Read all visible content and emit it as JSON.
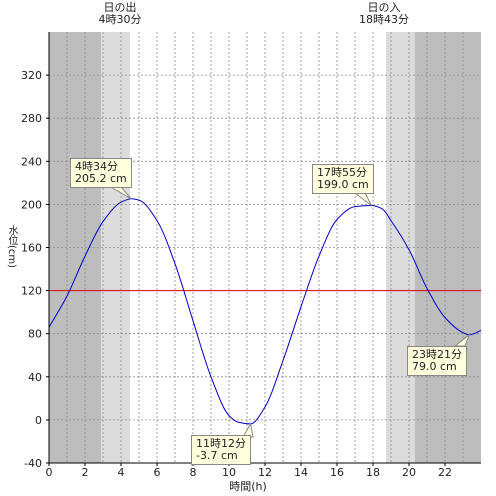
{
  "sun": {
    "sunrise_label": "日の出",
    "sunrise_time": "4時30分",
    "sunset_label": "日の入",
    "sunset_time": "18時43分"
  },
  "callouts": [
    {
      "time": "4時34分",
      "level": "205.2 cm"
    },
    {
      "time": "11時12分",
      "level": "-3.7 cm"
    },
    {
      "time": "17時55分",
      "level": "199.0 cm"
    },
    {
      "time": "23時21分",
      "level": "79.0 cm"
    }
  ],
  "chart_data": {
    "type": "line",
    "xlabel": "時間(h)",
    "ylabel": "水位(cm)",
    "xlim": [
      0,
      24
    ],
    "ylim": [
      -40,
      360
    ],
    "x_ticks": [
      0,
      2,
      4,
      6,
      8,
      10,
      12,
      14,
      16,
      18,
      20,
      22
    ],
    "y_ticks": [
      -40,
      0,
      40,
      80,
      120,
      160,
      200,
      240,
      280,
      320
    ],
    "grid": true,
    "reference_line": {
      "value": 120,
      "color": "#e00000"
    },
    "line_color": "#0000cc",
    "shading": {
      "night_color": "#bdbdbd",
      "twilight_color": "#dcdcdc",
      "day_color": "#ffffff",
      "sunrise_hour": 4.5,
      "sunset_hour": 18.72
    },
    "extrema": [
      {
        "x": 4.567,
        "y": 205.2
      },
      {
        "x": 11.2,
        "y": -3.7
      },
      {
        "x": 17.917,
        "y": 199.0
      },
      {
        "x": 23.35,
        "y": 79.0
      }
    ],
    "series": [
      {
        "x": [
          0,
          1,
          2,
          3,
          4,
          4.567,
          5,
          6,
          7,
          8,
          9,
          10,
          10.5,
          11.2,
          12,
          13,
          14,
          15,
          16,
          17,
          17.917,
          18.5,
          19,
          20,
          21,
          22,
          23,
          23.35,
          24
        ],
        "y": [
          86,
          115,
          152,
          184,
          202,
          205.2,
          204,
          185,
          145,
          92,
          40,
          4,
          -2,
          -3.7,
          12,
          55,
          105,
          152,
          186,
          198,
          199.0,
          196,
          185,
          158,
          122,
          95,
          81,
          79.0,
          83
        ]
      }
    ]
  }
}
